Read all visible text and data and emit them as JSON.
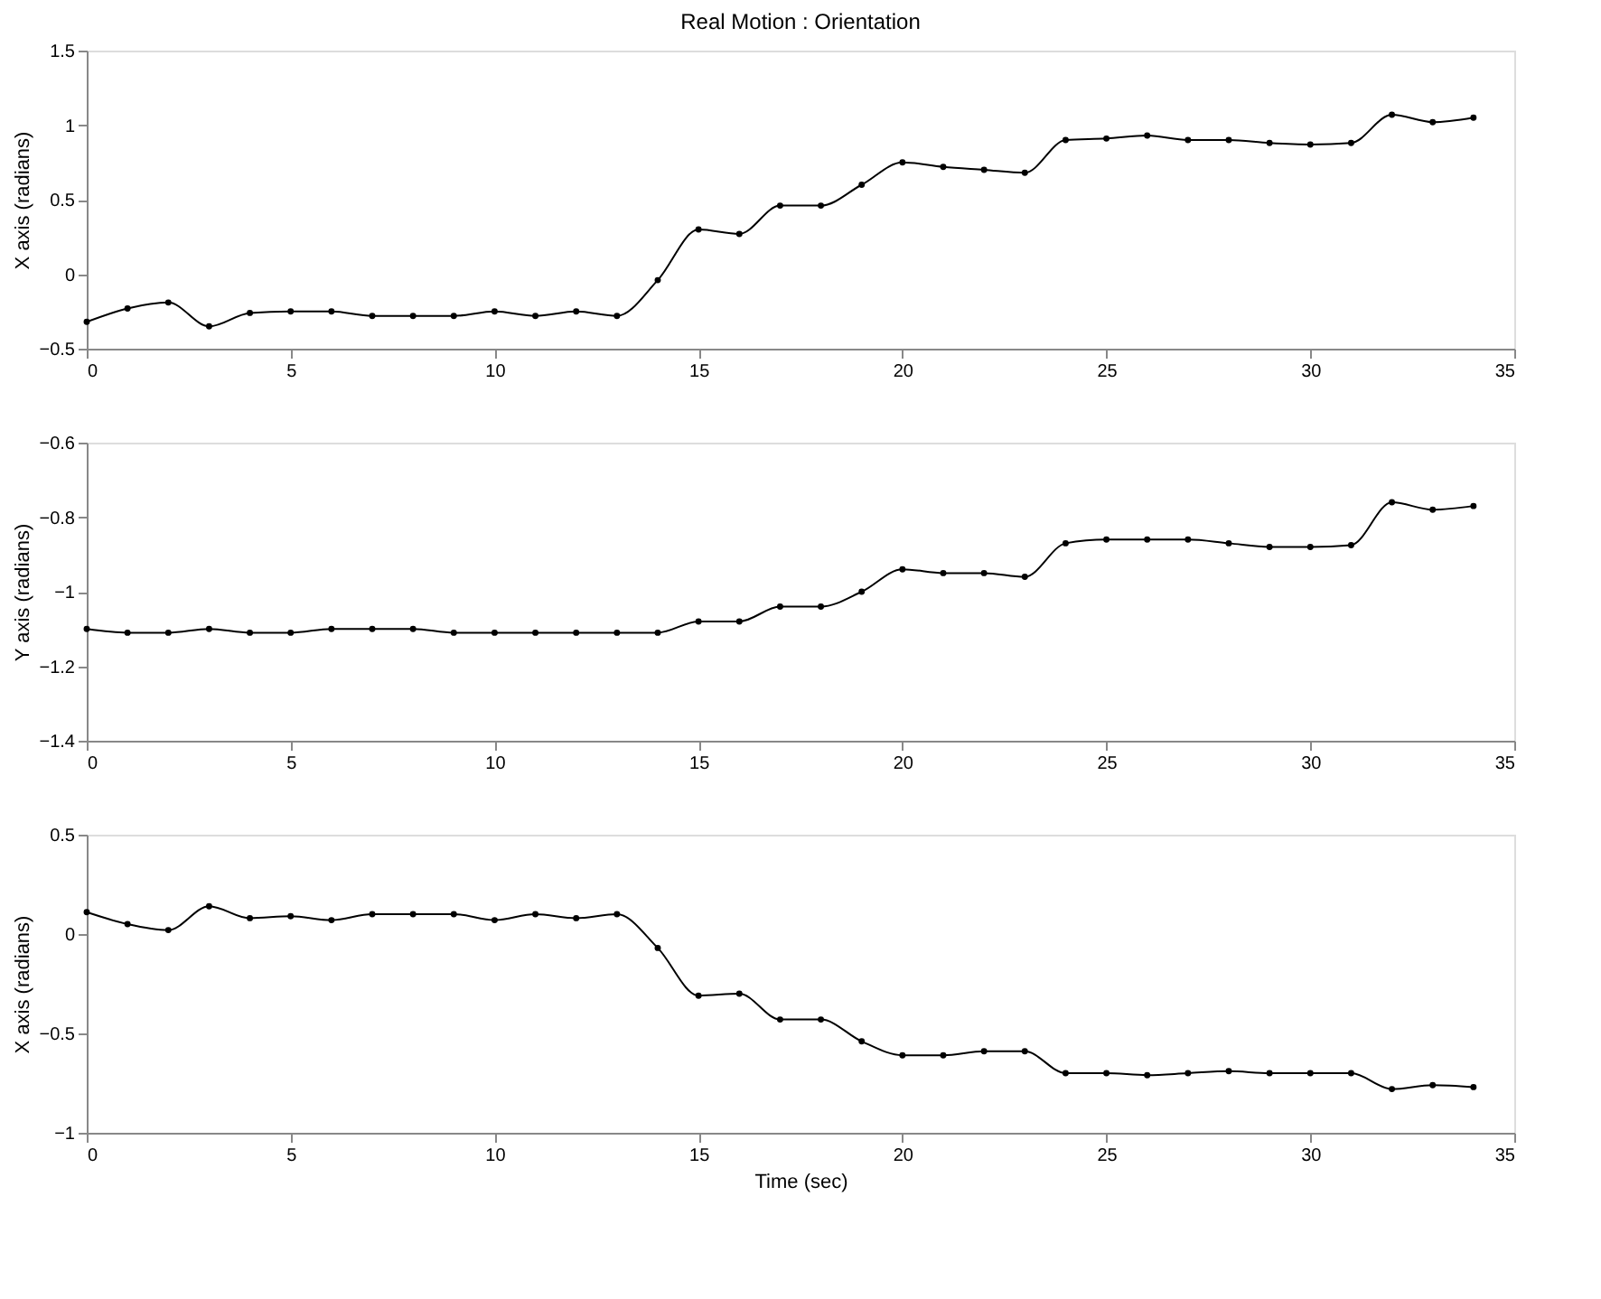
{
  "chart_data": [
    {
      "type": "line",
      "title": "Real Motion : Orientation",
      "ylabel": "X axis (radians)",
      "x": [
        0,
        1,
        2,
        3,
        4,
        5,
        6,
        7,
        8,
        9,
        10,
        11,
        12,
        13,
        14,
        15,
        16,
        17,
        18,
        19,
        20,
        21,
        22,
        23,
        24,
        25,
        26,
        27,
        28,
        29,
        30,
        31,
        32,
        33,
        34
      ],
      "series": [
        {
          "color": "#000000",
          "values": [
            -0.32,
            -0.23,
            -0.19,
            -0.35,
            -0.26,
            -0.25,
            -0.25,
            -0.28,
            -0.28,
            -0.28,
            -0.25,
            -0.28,
            -0.25,
            -0.28,
            -0.04,
            0.3,
            0.27,
            0.46,
            0.46,
            0.6,
            0.75,
            0.72,
            0.7,
            0.68,
            0.9,
            0.91,
            0.93,
            0.9,
            0.9,
            0.88,
            0.87,
            0.88,
            1.07,
            1.02,
            1.05
          ]
        }
      ],
      "xlim": [
        0,
        35
      ],
      "xticks": [
        0,
        5,
        10,
        15,
        20,
        25,
        30,
        35
      ],
      "ylim": [
        -0.5,
        1.5
      ],
      "yticks": [
        -0.5,
        0,
        0.5,
        1,
        1.5
      ],
      "grid": false,
      "marker": "circle",
      "line_style": "solid"
    },
    {
      "type": "line",
      "ylabel": "Y axis (radians)",
      "x": [
        0,
        1,
        2,
        3,
        4,
        5,
        6,
        7,
        8,
        9,
        10,
        11,
        12,
        13,
        14,
        15,
        16,
        17,
        18,
        19,
        20,
        21,
        22,
        23,
        24,
        25,
        26,
        27,
        28,
        29,
        30,
        31,
        32,
        33,
        34
      ],
      "series": [
        {
          "color": "#000000",
          "values": [
            -1.1,
            -1.11,
            -1.11,
            -1.1,
            -1.11,
            -1.11,
            -1.1,
            -1.1,
            -1.1,
            -1.11,
            -1.11,
            -1.11,
            -1.11,
            -1.11,
            -1.11,
            -1.08,
            -1.08,
            -1.04,
            -1.04,
            -1.0,
            -0.94,
            -0.95,
            -0.95,
            -0.96,
            -0.87,
            -0.86,
            -0.86,
            -0.86,
            -0.87,
            -0.88,
            -0.88,
            -0.875,
            -0.76,
            -0.78,
            -0.77
          ]
        }
      ],
      "xlim": [
        0,
        35
      ],
      "xticks": [
        0,
        5,
        10,
        15,
        20,
        25,
        30,
        35
      ],
      "ylim": [
        -1.4,
        -0.6
      ],
      "yticks": [
        -1.4,
        -1.2,
        -1,
        -0.8,
        -0.6
      ],
      "grid": false,
      "marker": "circle",
      "line_style": "solid"
    },
    {
      "type": "line",
      "xlabel": "Time (sec)",
      "ylabel": "X axis (radians)",
      "x": [
        0,
        1,
        2,
        3,
        4,
        5,
        6,
        7,
        8,
        9,
        10,
        11,
        12,
        13,
        14,
        15,
        16,
        17,
        18,
        19,
        20,
        21,
        22,
        23,
        24,
        25,
        26,
        27,
        28,
        29,
        30,
        31,
        32,
        33,
        34
      ],
      "series": [
        {
          "color": "#000000",
          "values": [
            0.11,
            0.05,
            0.02,
            0.14,
            0.08,
            0.09,
            0.07,
            0.1,
            0.1,
            0.1,
            0.07,
            0.1,
            0.08,
            0.1,
            -0.07,
            -0.31,
            -0.3,
            -0.43,
            -0.43,
            -0.54,
            -0.61,
            -0.61,
            -0.59,
            -0.59,
            -0.7,
            -0.7,
            -0.71,
            -0.7,
            -0.69,
            -0.7,
            -0.7,
            -0.7,
            -0.78,
            -0.76,
            -0.77
          ]
        }
      ],
      "xlim": [
        0,
        35
      ],
      "xticks": [
        0,
        5,
        10,
        15,
        20,
        25,
        30,
        35
      ],
      "ylim": [
        -1,
        0.5
      ],
      "yticks": [
        -1,
        -0.5,
        0,
        0.5
      ],
      "grid": false,
      "marker": "circle",
      "line_style": "solid"
    }
  ]
}
